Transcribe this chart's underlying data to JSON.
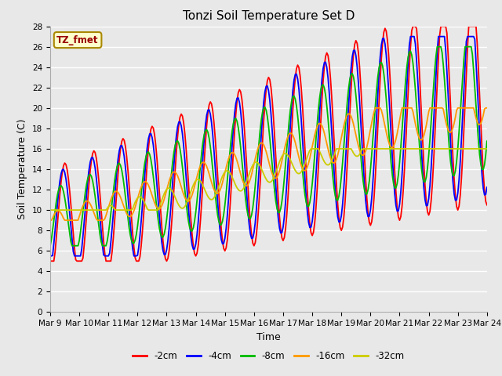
{
  "title": "Tonzi Soil Temperature Set D",
  "xlabel": "Time",
  "ylabel": "Soil Temperature (C)",
  "legend_label": "TZ_fmet",
  "legend_box_color": "#ffffcc",
  "legend_box_border": "#aa8800",
  "legend_text_color": "#990000",
  "ylim": [
    0,
    28
  ],
  "yticks": [
    0,
    2,
    4,
    6,
    8,
    10,
    12,
    14,
    16,
    18,
    20,
    22,
    24,
    26,
    28
  ],
  "xtick_labels": [
    "Mar 9",
    "Mar 10",
    "Mar 11",
    "Mar 12",
    "Mar 13",
    "Mar 14",
    "Mar 15",
    "Mar 16",
    "Mar 17",
    "Mar 18",
    "Mar 19",
    "Mar 20",
    "Mar 21",
    "Mar 22",
    "Mar 23",
    "Mar 24"
  ],
  "series_colors": [
    "#ff0000",
    "#0000ff",
    "#00bb00",
    "#ff9900",
    "#cccc00"
  ],
  "series_labels": [
    "-2cm",
    "-4cm",
    "-8cm",
    "-16cm",
    "-32cm"
  ],
  "fig_bg_color": "#e8e8e8",
  "plot_bg_color": "#e8e8e8",
  "grid_color": "#ffffff",
  "title_fontsize": 11,
  "axis_label_fontsize": 9,
  "tick_label_fontsize": 7.5,
  "linewidth": 1.3
}
